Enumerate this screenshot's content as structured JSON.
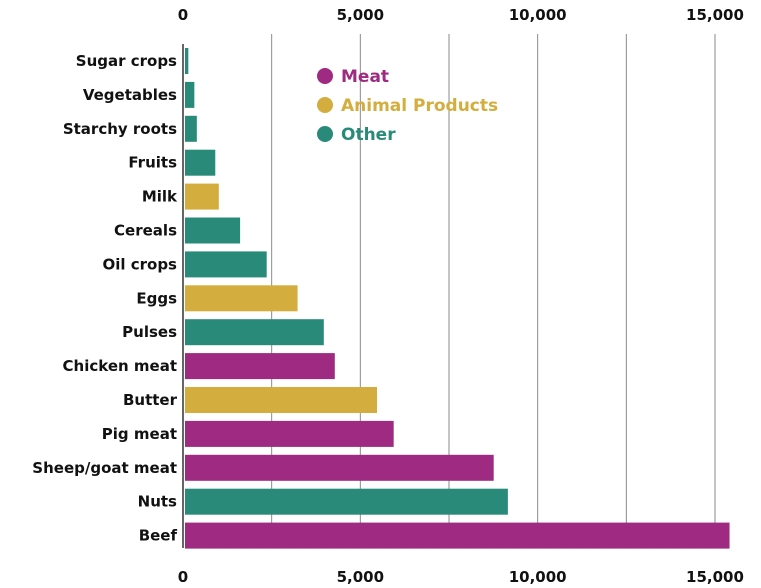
{
  "chart_data": {
    "type": "bar",
    "orientation": "horizontal",
    "categories": [
      "Sugar crops",
      "Vegetables",
      "Starchy roots",
      "Fruits",
      "Milk",
      "Cereals",
      "Oil crops",
      "Eggs",
      "Pulses",
      "Chicken meat",
      "Butter",
      "Pig meat",
      "Sheep/goat meat",
      "Nuts",
      "Beef"
    ],
    "values": [
      150,
      320,
      390,
      910,
      1010,
      1610,
      2360,
      3230,
      3970,
      4280,
      5470,
      5940,
      8760,
      9160,
      15410
    ],
    "groups": [
      "Other",
      "Other",
      "Other",
      "Other",
      "Animal Products",
      "Other",
      "Other",
      "Animal Products",
      "Other",
      "Meat",
      "Animal Products",
      "Meat",
      "Meat",
      "Other",
      "Meat"
    ],
    "legend": [
      {
        "name": "Meat",
        "color": "#9e2a82"
      },
      {
        "name": "Animal Products",
        "color": "#d4ad3f"
      },
      {
        "name": "Other",
        "color": "#2a8a7a"
      }
    ],
    "legend_position": "top-center",
    "xticks": [
      0,
      5000,
      10000,
      15000
    ],
    "xtick_labels": [
      "0",
      "5,000",
      "10,000",
      "15,000"
    ],
    "xlim": [
      0,
      15500
    ],
    "x_axis_position": "top-and-bottom",
    "grid": true,
    "title": "",
    "xlabel": "",
    "ylabel": ""
  }
}
